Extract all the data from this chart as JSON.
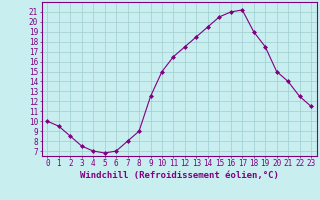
{
  "x": [
    0,
    1,
    2,
    3,
    4,
    5,
    6,
    7,
    8,
    9,
    10,
    11,
    12,
    13,
    14,
    15,
    16,
    17,
    18,
    19,
    20,
    21,
    22,
    23
  ],
  "y": [
    10.0,
    9.5,
    8.5,
    7.5,
    7.0,
    6.8,
    7.0,
    8.0,
    9.0,
    12.5,
    15.0,
    16.5,
    17.5,
    18.5,
    19.5,
    20.5,
    21.0,
    21.2,
    19.0,
    17.5,
    15.0,
    14.0,
    12.5,
    11.5
  ],
  "line_color": "#800080",
  "marker": "D",
  "marker_size": 2,
  "bg_color": "#c8eef0",
  "grid_color": "#a0cdd0",
  "xlabel": "Windchill (Refroidissement éolien,°C)",
  "xlabel_fontsize": 6.5,
  "ylabel_ticks": [
    7,
    8,
    9,
    10,
    11,
    12,
    13,
    14,
    15,
    16,
    17,
    18,
    19,
    20,
    21
  ],
  "ylim": [
    6.5,
    22.0
  ],
  "xlim": [
    -0.5,
    23.5
  ],
  "tick_fontsize": 5.5,
  "tick_color": "#800080",
  "axis_color": "#800080",
  "lw": 0.8
}
